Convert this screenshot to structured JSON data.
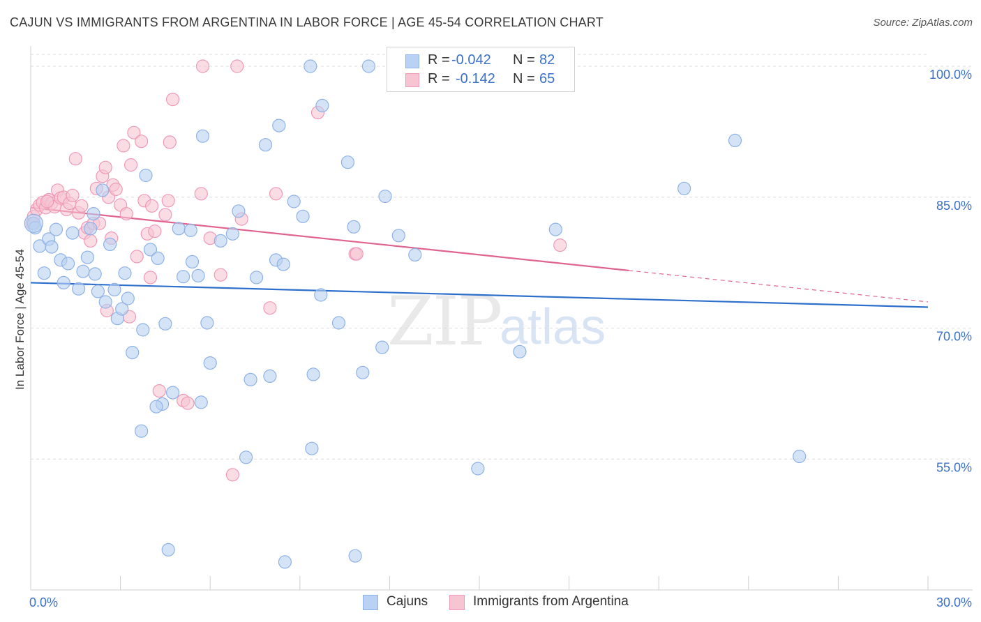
{
  "title": "CAJUN VS IMMIGRANTS FROM ARGENTINA IN LABOR FORCE | AGE 45-54 CORRELATION CHART",
  "source": "Source: ZipAtlas.com",
  "watermark": {
    "zip": "ZIP",
    "atlas": "atlas"
  },
  "legend_top": {
    "row1": {
      "r_label": "R =",
      "r_value": "-0.042",
      "n_label": "N =",
      "n_value": "82"
    },
    "row2": {
      "r_label": "R =",
      "r_value": "-0.142",
      "n_label": "N =",
      "n_value": "65"
    }
  },
  "legend_bottom": {
    "series1": "Cajuns",
    "series2": "Immigrants from Argentina"
  },
  "colors": {
    "blue_fill": "#b9d1f2",
    "blue_stroke": "#8fb2e6",
    "blue_line": "#2e6fcc",
    "pink_fill": "#f7c4d4",
    "pink_stroke": "#ee9ab6",
    "pink_line": "#e0638e",
    "tick_label": "#3a70c8",
    "grid": "#dcdcdc"
  },
  "chart_data": {
    "type": "scatter",
    "title": "CAJUN VS IMMIGRANTS FROM ARGENTINA IN LABOR FORCE | AGE 45-54 CORRELATION CHART",
    "xlabel": "",
    "ylabel": "In Labor Force | Age 45-54",
    "xlim": [
      0,
      30
    ],
    "ylim": [
      40,
      102
    ],
    "x_tick_labels": [
      {
        "value": 0,
        "label": "0.0%"
      },
      {
        "value": 30,
        "label": "30.0%"
      }
    ],
    "y_ticks": [
      {
        "value": 100,
        "label": "100.0%"
      },
      {
        "value": 85,
        "label": "85.0%"
      },
      {
        "value": 70,
        "label": "70.0%"
      },
      {
        "value": 55,
        "label": "55.0%"
      }
    ],
    "series": [
      {
        "name": "Cajuns",
        "r": -0.042,
        "n": 82,
        "trend": {
          "x0": 0,
          "y0": 75.2,
          "x1": 30,
          "y1": 72.4,
          "dashed_from": null
        },
        "points": [
          [
            0.1,
            82.0
          ],
          [
            0.15,
            81.5
          ],
          [
            0.3,
            79.4
          ],
          [
            0.45,
            76.3
          ],
          [
            0.6,
            80.2
          ],
          [
            0.7,
            79.3
          ],
          [
            0.85,
            81.3
          ],
          [
            1.0,
            77.8
          ],
          [
            1.1,
            75.2
          ],
          [
            1.25,
            77.4
          ],
          [
            1.4,
            80.9
          ],
          [
            1.6,
            74.5
          ],
          [
            1.75,
            76.5
          ],
          [
            1.9,
            78.1
          ],
          [
            2.0,
            81.4
          ],
          [
            2.1,
            83.1
          ],
          [
            2.15,
            76.2
          ],
          [
            2.25,
            74.2
          ],
          [
            2.4,
            85.8
          ],
          [
            2.5,
            73.0
          ],
          [
            2.65,
            79.6
          ],
          [
            2.8,
            74.4
          ],
          [
            2.9,
            71.1
          ],
          [
            3.05,
            72.2
          ],
          [
            3.15,
            76.3
          ],
          [
            3.25,
            73.4
          ],
          [
            3.4,
            67.2
          ],
          [
            3.75,
            69.8
          ],
          [
            3.85,
            87.5
          ],
          [
            4.0,
            79.0
          ],
          [
            4.25,
            78.0
          ],
          [
            4.5,
            70.5
          ],
          [
            4.75,
            62.6
          ],
          [
            4.95,
            81.4
          ],
          [
            5.1,
            75.9
          ],
          [
            5.35,
            81.2
          ],
          [
            5.4,
            77.6
          ],
          [
            5.6,
            76.0
          ],
          [
            5.75,
            92.0
          ],
          [
            5.9,
            70.6
          ],
          [
            6.0,
            66.0
          ],
          [
            6.35,
            80.0
          ],
          [
            6.75,
            80.8
          ],
          [
            6.95,
            83.4
          ],
          [
            7.2,
            55.2
          ],
          [
            7.35,
            64.1
          ],
          [
            7.55,
            75.8
          ],
          [
            7.85,
            91.0
          ],
          [
            8.0,
            64.5
          ],
          [
            8.2,
            77.8
          ],
          [
            8.3,
            93.2
          ],
          [
            8.45,
            77.3
          ],
          [
            8.8,
            84.5
          ],
          [
            9.1,
            82.8
          ],
          [
            9.35,
            100.0
          ],
          [
            9.4,
            56.2
          ],
          [
            9.45,
            64.7
          ],
          [
            9.7,
            73.8
          ],
          [
            9.75,
            95.5
          ],
          [
            10.3,
            70.6
          ],
          [
            10.6,
            89.0
          ],
          [
            10.8,
            81.6
          ],
          [
            11.1,
            64.9
          ],
          [
            11.3,
            100.0
          ],
          [
            11.75,
            67.8
          ],
          [
            11.85,
            85.1
          ],
          [
            12.3,
            80.6
          ],
          [
            12.85,
            78.4
          ],
          [
            13.0,
            100.0
          ],
          [
            14.95,
            53.9
          ],
          [
            16.35,
            67.3
          ],
          [
            17.55,
            81.3
          ],
          [
            21.85,
            86.0
          ],
          [
            23.55,
            91.5
          ],
          [
            25.7,
            55.3
          ],
          [
            5.7,
            61.5
          ],
          [
            4.4,
            61.3
          ],
          [
            4.2,
            61.0
          ],
          [
            3.7,
            58.2
          ],
          [
            4.6,
            44.6
          ],
          [
            8.5,
            43.2
          ],
          [
            10.85,
            43.9
          ]
        ]
      },
      {
        "name": "Immigrants from Argentina",
        "r": -0.142,
        "n": 65,
        "trend": {
          "x0": 0,
          "y0": 83.8,
          "x1": 20.0,
          "y1": 76.6,
          "dashed_to_x": 30,
          "dashed_to_y": 73.0
        },
        "points": [
          [
            0.05,
            82.0
          ],
          [
            0.1,
            82.8
          ],
          [
            0.2,
            83.6
          ],
          [
            0.3,
            84.1
          ],
          [
            0.4,
            84.4
          ],
          [
            0.5,
            83.8
          ],
          [
            0.6,
            84.7
          ],
          [
            0.7,
            84.3
          ],
          [
            0.8,
            83.9
          ],
          [
            0.9,
            85.8
          ],
          [
            1.0,
            84.9
          ],
          [
            1.1,
            85.0
          ],
          [
            1.2,
            83.6
          ],
          [
            1.3,
            84.3
          ],
          [
            1.4,
            85.2
          ],
          [
            1.5,
            89.4
          ],
          [
            1.6,
            83.2
          ],
          [
            1.7,
            84.0
          ],
          [
            1.8,
            80.9
          ],
          [
            1.9,
            81.5
          ],
          [
            2.0,
            80.0
          ],
          [
            2.1,
            82.0
          ],
          [
            2.2,
            86.0
          ],
          [
            2.3,
            82.0
          ],
          [
            2.4,
            87.4
          ],
          [
            2.5,
            88.4
          ],
          [
            2.55,
            72.0
          ],
          [
            2.6,
            85.0
          ],
          [
            2.7,
            80.3
          ],
          [
            2.75,
            86.4
          ],
          [
            2.85,
            85.9
          ],
          [
            3.0,
            84.1
          ],
          [
            3.1,
            90.9
          ],
          [
            3.2,
            83.1
          ],
          [
            3.3,
            71.3
          ],
          [
            3.35,
            88.7
          ],
          [
            3.45,
            92.4
          ],
          [
            3.55,
            78.2
          ],
          [
            3.7,
            91.4
          ],
          [
            3.8,
            84.6
          ],
          [
            3.9,
            80.8
          ],
          [
            4.0,
            75.8
          ],
          [
            4.05,
            84.0
          ],
          [
            4.15,
            81.1
          ],
          [
            4.3,
            62.8
          ],
          [
            4.5,
            83.0
          ],
          [
            4.6,
            84.6
          ],
          [
            4.65,
            91.3
          ],
          [
            4.75,
            96.2
          ],
          [
            5.1,
            61.7
          ],
          [
            5.25,
            61.4
          ],
          [
            5.7,
            85.4
          ],
          [
            5.75,
            100.0
          ],
          [
            6.0,
            80.3
          ],
          [
            6.35,
            76.1
          ],
          [
            6.75,
            53.2
          ],
          [
            6.9,
            100.0
          ],
          [
            7.05,
            82.5
          ],
          [
            8.0,
            72.3
          ],
          [
            8.2,
            85.4
          ],
          [
            9.6,
            94.7
          ],
          [
            10.85,
            78.5
          ],
          [
            10.9,
            78.5
          ],
          [
            17.7,
            79.5
          ],
          [
            0.55,
            84.5
          ]
        ]
      }
    ]
  }
}
